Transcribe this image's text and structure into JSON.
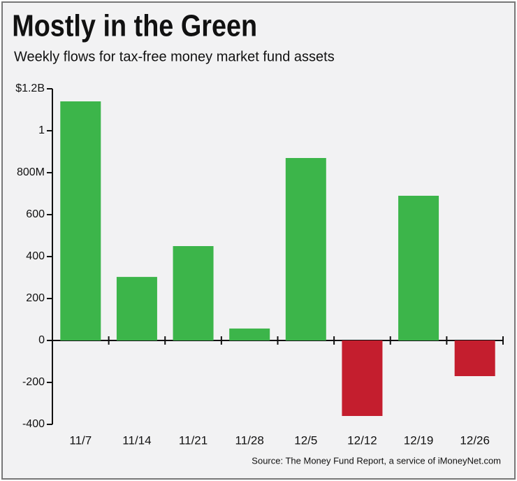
{
  "chart_data": {
    "type": "bar",
    "title": "Mostly in the Green",
    "subtitle": "Weekly flows for tax-free money market fund assets",
    "source": "Source: The Money Fund Report, a service of iMoneyNet.com",
    "categories": [
      "11/7",
      "11/14",
      "11/21",
      "11/28",
      "12/5",
      "12/12",
      "12/19",
      "12/26"
    ],
    "values": [
      1140,
      303,
      450,
      57,
      870,
      -360,
      690,
      -170
    ],
    "positive_color": "#3cb54a",
    "negative_color": "#c41e2e",
    "ylim": [
      -400,
      1200
    ],
    "yticks": [
      {
        "value": -400,
        "label": "-400"
      },
      -200,
      0,
      200,
      400,
      600,
      {
        "value": 800,
        "label": "800M"
      },
      {
        "value": 1000,
        "label": "1"
      },
      {
        "value": 1200,
        "label": "$1.2B"
      }
    ],
    "grid": false
  }
}
